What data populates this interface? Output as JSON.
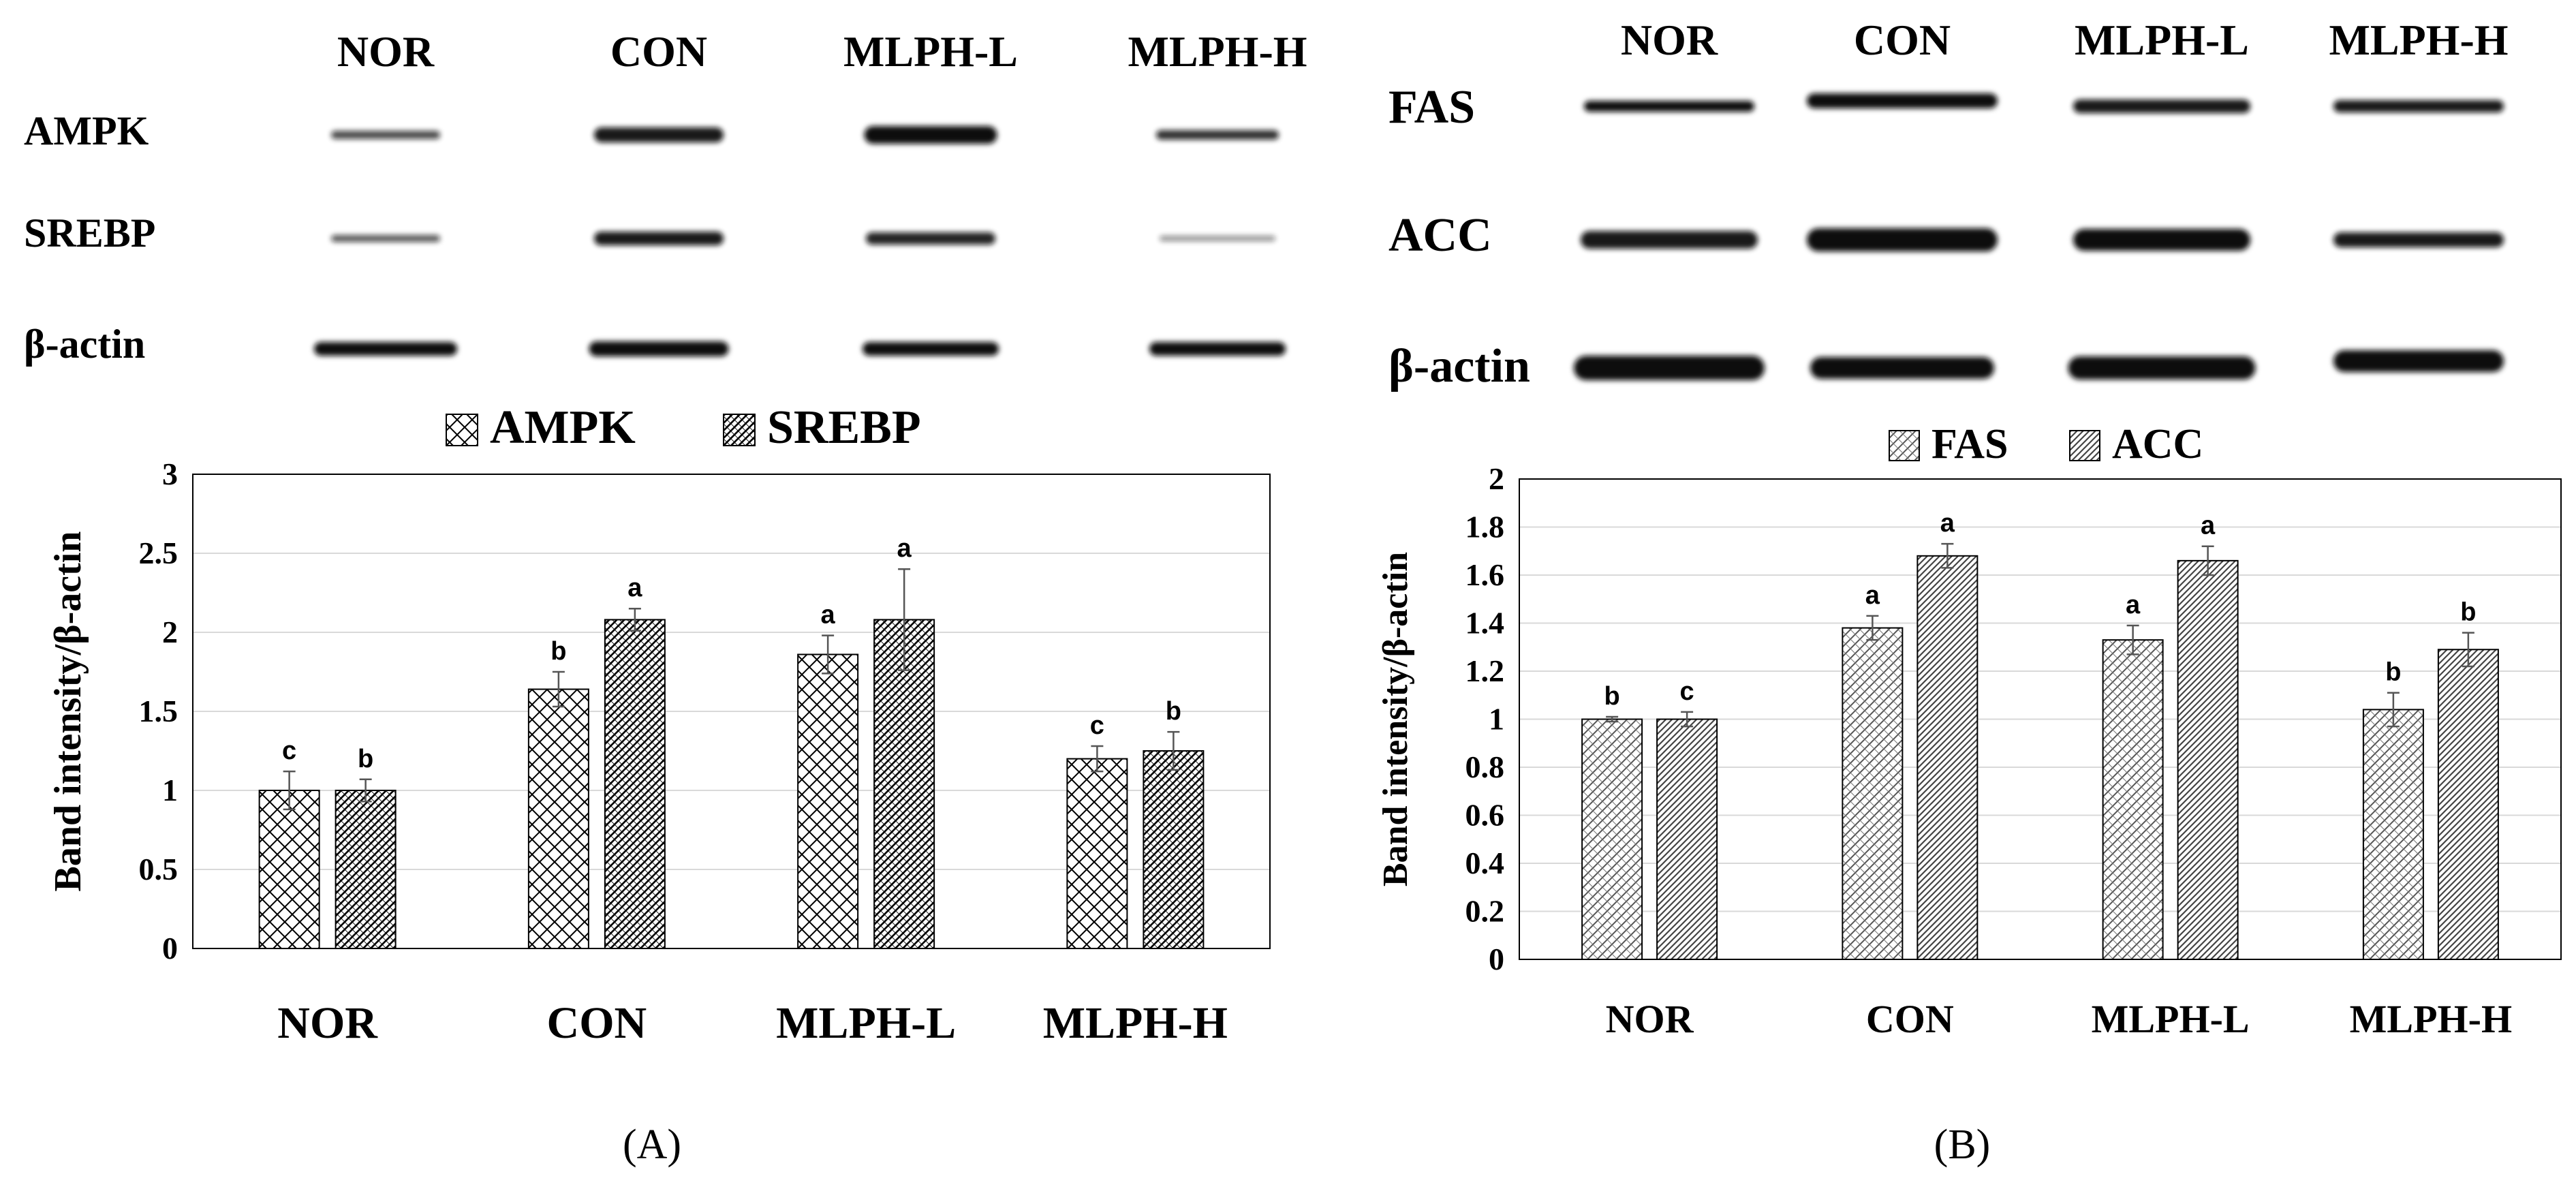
{
  "figure": {
    "panel_labels": [
      "(A)",
      "(B)"
    ]
  },
  "panels": [
    {
      "blot": {
        "lane_labels": [
          "NOR",
          "CON",
          "MLPH-L",
          "MLPH-H"
        ],
        "row_labels": [
          "AMPK",
          "SREBP",
          "β-actin"
        ]
      }
    },
    {
      "blot": {
        "lane_labels": [
          "NOR",
          "CON",
          "MLPH-L",
          "MLPH-H"
        ],
        "row_labels": [
          "FAS",
          "ACC",
          "β-actin"
        ]
      }
    }
  ],
  "chart_data": [
    {
      "type": "bar",
      "categories": [
        "NOR",
        "CON",
        "MLPH-L",
        "MLPH-H"
      ],
      "series": [
        {
          "name": "AMPK",
          "values": [
            1.0,
            1.64,
            1.86,
            1.2
          ],
          "errors": [
            0.12,
            0.11,
            0.12,
            0.08
          ],
          "letters": [
            "c",
            "b",
            "a",
            "c"
          ]
        },
        {
          "name": "SREBP",
          "values": [
            1.0,
            2.08,
            2.08,
            1.25
          ],
          "errors": [
            0.07,
            0.07,
            0.32,
            0.12
          ],
          "letters": [
            "b",
            "a",
            "a",
            "b"
          ]
        }
      ],
      "ylabel": "Band intensity/β-actin",
      "ylim": [
        0,
        3
      ],
      "yticks": [
        "0",
        "0.5",
        "1",
        "1.5",
        "2",
        "2.5",
        "3"
      ],
      "grid": true,
      "legend": "top"
    },
    {
      "type": "bar",
      "categories": [
        "NOR",
        "CON",
        "MLPH-L",
        "MLPH-H"
      ],
      "series": [
        {
          "name": "FAS",
          "values": [
            1.0,
            1.38,
            1.33,
            1.04
          ],
          "errors": [
            0.01,
            0.05,
            0.06,
            0.07
          ],
          "letters": [
            "b",
            "a",
            "a",
            "b"
          ]
        },
        {
          "name": "ACC",
          "values": [
            1.0,
            1.68,
            1.66,
            1.29
          ],
          "errors": [
            0.03,
            0.05,
            0.06,
            0.07
          ],
          "letters": [
            "c",
            "a",
            "a",
            "b"
          ]
        }
      ],
      "ylabel": "Band intensity/β-actin",
      "ylim": [
        0,
        2
      ],
      "yticks": [
        "0",
        "0.2",
        "0.4",
        "0.6",
        "0.8",
        "1",
        "1.2",
        "1.4",
        "1.6",
        "1.8",
        "2"
      ],
      "grid": true,
      "legend": "top"
    }
  ]
}
